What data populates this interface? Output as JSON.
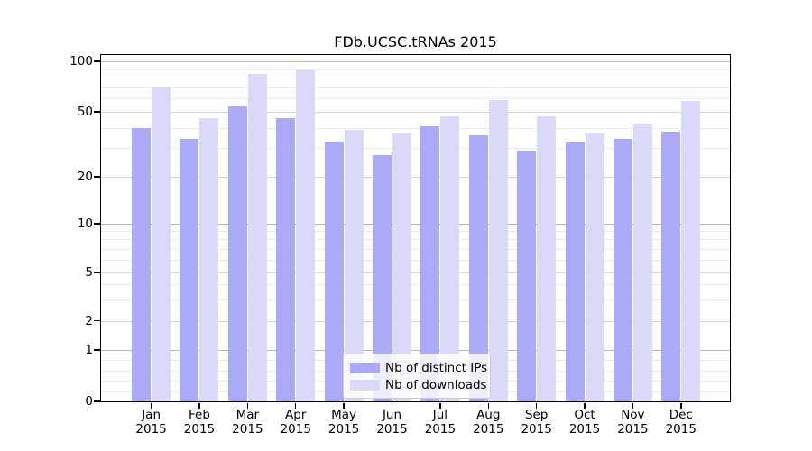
{
  "title": "FDb.UCSC.tRNAs 2015",
  "colors": {
    "bar_distinct_ips": "#aaaaf6",
    "bar_downloads": "#dadaf8",
    "grid_major": "#b2b2b2",
    "grid_sub": "#d4d4d4",
    "grid_minor": "#eaeaea",
    "frame": "#000000",
    "legend_border": "#cccccc"
  },
  "legend": {
    "items": [
      {
        "label": "Nb of distinct IPs",
        "series": "distinct_ips"
      },
      {
        "label": "Nb of downloads",
        "series": "downloads"
      }
    ]
  },
  "chart_data": {
    "type": "bar",
    "title": "FDb.UCSC.tRNAs 2015",
    "categories": [
      "Jan",
      "Feb",
      "Mar",
      "Apr",
      "May",
      "Jun",
      "Jul",
      "Aug",
      "Sep",
      "Oct",
      "Nov",
      "Dec"
    ],
    "category_year": "2015",
    "series": [
      {
        "name": "Nb of distinct IPs",
        "values": [
          40,
          34,
          54,
          46,
          33,
          27,
          41,
          36,
          29,
          33,
          34,
          38
        ]
      },
      {
        "name": "Nb of downloads",
        "values": [
          71,
          46,
          84,
          88,
          39,
          37,
          47,
          59,
          47,
          37,
          42,
          58
        ]
      }
    ],
    "ylabel": "",
    "xlabel": "",
    "yscale": "symlog",
    "yticks": [
      100,
      50,
      20,
      10,
      5,
      2,
      1,
      0
    ],
    "ytick_major": [
      100,
      10,
      1
    ],
    "ytick_sub": [
      50,
      20,
      5,
      2
    ],
    "ytick_minor": [
      90,
      80,
      70,
      60,
      40,
      30,
      9,
      8,
      7,
      6,
      4,
      3,
      0.8,
      0.6,
      0.4,
      0.2
    ],
    "ylim": [
      0,
      110
    ],
    "grid": "horizontal",
    "legend_position": "lower-center"
  }
}
